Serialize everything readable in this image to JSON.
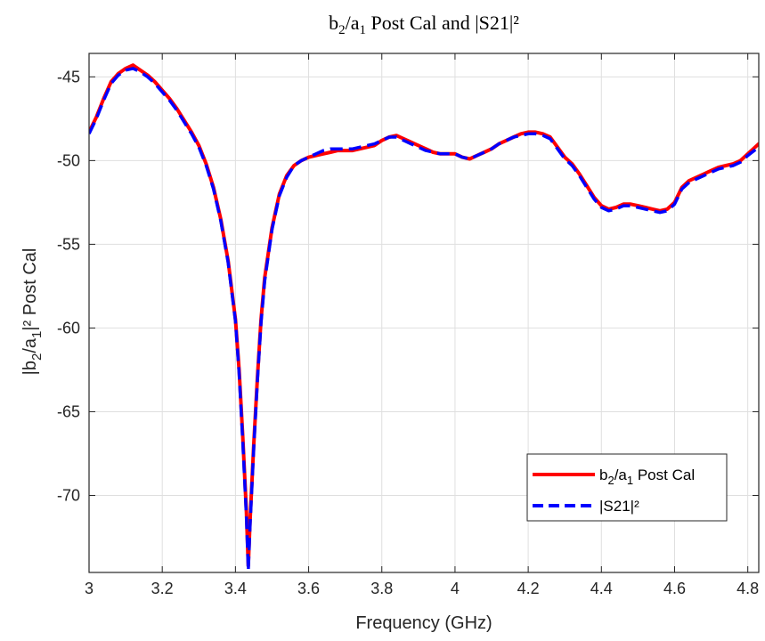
{
  "chart_data": {
    "type": "line",
    "title": "b₂/a₁ Post Cal and |S21|²",
    "xlabel": "Frequency (GHz)",
    "ylabel": "|b₂/a₁|² Post Cal",
    "xlim": [
      3.0,
      4.83
    ],
    "ylim": [
      -74.6,
      -43.6
    ],
    "xticks": [
      3,
      3.2,
      3.4,
      3.6,
      3.8,
      4,
      4.2,
      4.4,
      4.6,
      4.8
    ],
    "xtick_labels": [
      "3",
      "3.2",
      "3.4",
      "3.6",
      "3.8",
      "4",
      "4.2",
      "4.4",
      "4.6",
      "4.8"
    ],
    "yticks": [
      -45,
      -50,
      -55,
      -60,
      -65,
      -70
    ],
    "ytick_labels": [
      "-45",
      "-50",
      "-55",
      "-60",
      "-65",
      "-70"
    ],
    "grid": true,
    "legend_position": "bottom-right",
    "x": [
      3.0,
      3.02,
      3.04,
      3.06,
      3.08,
      3.1,
      3.12,
      3.14,
      3.16,
      3.18,
      3.2,
      3.22,
      3.24,
      3.26,
      3.28,
      3.3,
      3.32,
      3.34,
      3.36,
      3.38,
      3.4,
      3.41,
      3.42,
      3.43,
      3.435,
      3.44,
      3.45,
      3.46,
      3.47,
      3.48,
      3.5,
      3.52,
      3.54,
      3.56,
      3.58,
      3.6,
      3.62,
      3.64,
      3.66,
      3.68,
      3.7,
      3.72,
      3.74,
      3.76,
      3.78,
      3.8,
      3.82,
      3.84,
      3.86,
      3.88,
      3.9,
      3.92,
      3.94,
      3.96,
      3.98,
      4.0,
      4.02,
      4.04,
      4.06,
      4.08,
      4.1,
      4.12,
      4.14,
      4.16,
      4.18,
      4.2,
      4.22,
      4.24,
      4.26,
      4.28,
      4.3,
      4.32,
      4.34,
      4.36,
      4.38,
      4.4,
      4.42,
      4.44,
      4.46,
      4.48,
      4.5,
      4.52,
      4.54,
      4.56,
      4.58,
      4.6,
      4.62,
      4.64,
      4.66,
      4.68,
      4.7,
      4.72,
      4.74,
      4.76,
      4.78,
      4.8,
      4.83
    ],
    "series": [
      {
        "name": "b₂/a₁ Post Cal",
        "color": "#ff0000",
        "style": "solid",
        "values": [
          -48.3,
          -47.4,
          -46.3,
          -45.3,
          -44.8,
          -44.5,
          -44.3,
          -44.6,
          -44.9,
          -45.3,
          -45.8,
          -46.3,
          -46.9,
          -47.6,
          -48.3,
          -49.1,
          -50.2,
          -51.6,
          -53.5,
          -56.0,
          -59.5,
          -62.5,
          -66.5,
          -71.0,
          -74.2,
          -71.5,
          -67.0,
          -63.0,
          -59.5,
          -57.0,
          -54.0,
          -52.0,
          -50.9,
          -50.3,
          -50.0,
          -49.8,
          -49.7,
          -49.6,
          -49.5,
          -49.4,
          -49.4,
          -49.4,
          -49.3,
          -49.2,
          -49.1,
          -48.8,
          -48.6,
          -48.5,
          -48.7,
          -48.9,
          -49.1,
          -49.3,
          -49.5,
          -49.6,
          -49.6,
          -49.6,
          -49.8,
          -49.9,
          -49.7,
          -49.5,
          -49.3,
          -49.0,
          -48.8,
          -48.6,
          -48.4,
          -48.3,
          -48.3,
          -48.4,
          -48.6,
          -49.2,
          -49.8,
          -50.2,
          -50.8,
          -51.5,
          -52.2,
          -52.7,
          -52.9,
          -52.8,
          -52.6,
          -52.6,
          -52.7,
          -52.8,
          -52.9,
          -53.0,
          -52.9,
          -52.5,
          -51.6,
          -51.2,
          -51.0,
          -50.8,
          -50.6,
          -50.4,
          -50.3,
          -50.2,
          -50.0,
          -49.6,
          -49.0
        ]
      },
      {
        "name": "|S21|²",
        "color": "#0000ff",
        "style": "dashed",
        "values": [
          -48.4,
          -47.5,
          -46.4,
          -45.4,
          -44.9,
          -44.6,
          -44.5,
          -44.7,
          -45.0,
          -45.4,
          -45.9,
          -46.4,
          -47.0,
          -47.7,
          -48.4,
          -49.2,
          -50.3,
          -51.7,
          -53.6,
          -56.1,
          -59.6,
          -62.7,
          -66.8,
          -71.3,
          -74.5,
          -71.8,
          -67.2,
          -63.2,
          -59.7,
          -57.2,
          -54.1,
          -52.1,
          -51.0,
          -50.3,
          -50.0,
          -49.8,
          -49.6,
          -49.4,
          -49.3,
          -49.3,
          -49.3,
          -49.3,
          -49.2,
          -49.1,
          -49.0,
          -48.8,
          -48.6,
          -48.6,
          -48.8,
          -49.0,
          -49.2,
          -49.4,
          -49.5,
          -49.6,
          -49.6,
          -49.6,
          -49.8,
          -49.9,
          -49.7,
          -49.5,
          -49.3,
          -49.0,
          -48.8,
          -48.6,
          -48.5,
          -48.4,
          -48.4,
          -48.5,
          -48.7,
          -49.3,
          -49.9,
          -50.3,
          -50.9,
          -51.6,
          -52.3,
          -52.8,
          -53.0,
          -52.9,
          -52.7,
          -52.7,
          -52.8,
          -52.9,
          -53.0,
          -53.1,
          -53.0,
          -52.6,
          -51.7,
          -51.3,
          -51.1,
          -50.9,
          -50.7,
          -50.5,
          -50.4,
          -50.3,
          -50.1,
          -49.7,
          -49.2
        ]
      }
    ]
  },
  "legend": {
    "entry1_main": "b",
    "entry1_sub1": "2",
    "entry1_mid": "/a",
    "entry1_sub2": "1",
    "entry1_tail": " Post Cal",
    "entry2": "|S21|²"
  },
  "ylabel_parts": {
    "pre": "|b",
    "sub1": "2",
    "mid": "/a",
    "sub2": "1",
    "post": "|² Post Cal"
  },
  "title_parts": {
    "pre": "b",
    "sub1": "2",
    "mid": "/a",
    "sub2": "1",
    "post": " Post Cal and |S21|²"
  }
}
